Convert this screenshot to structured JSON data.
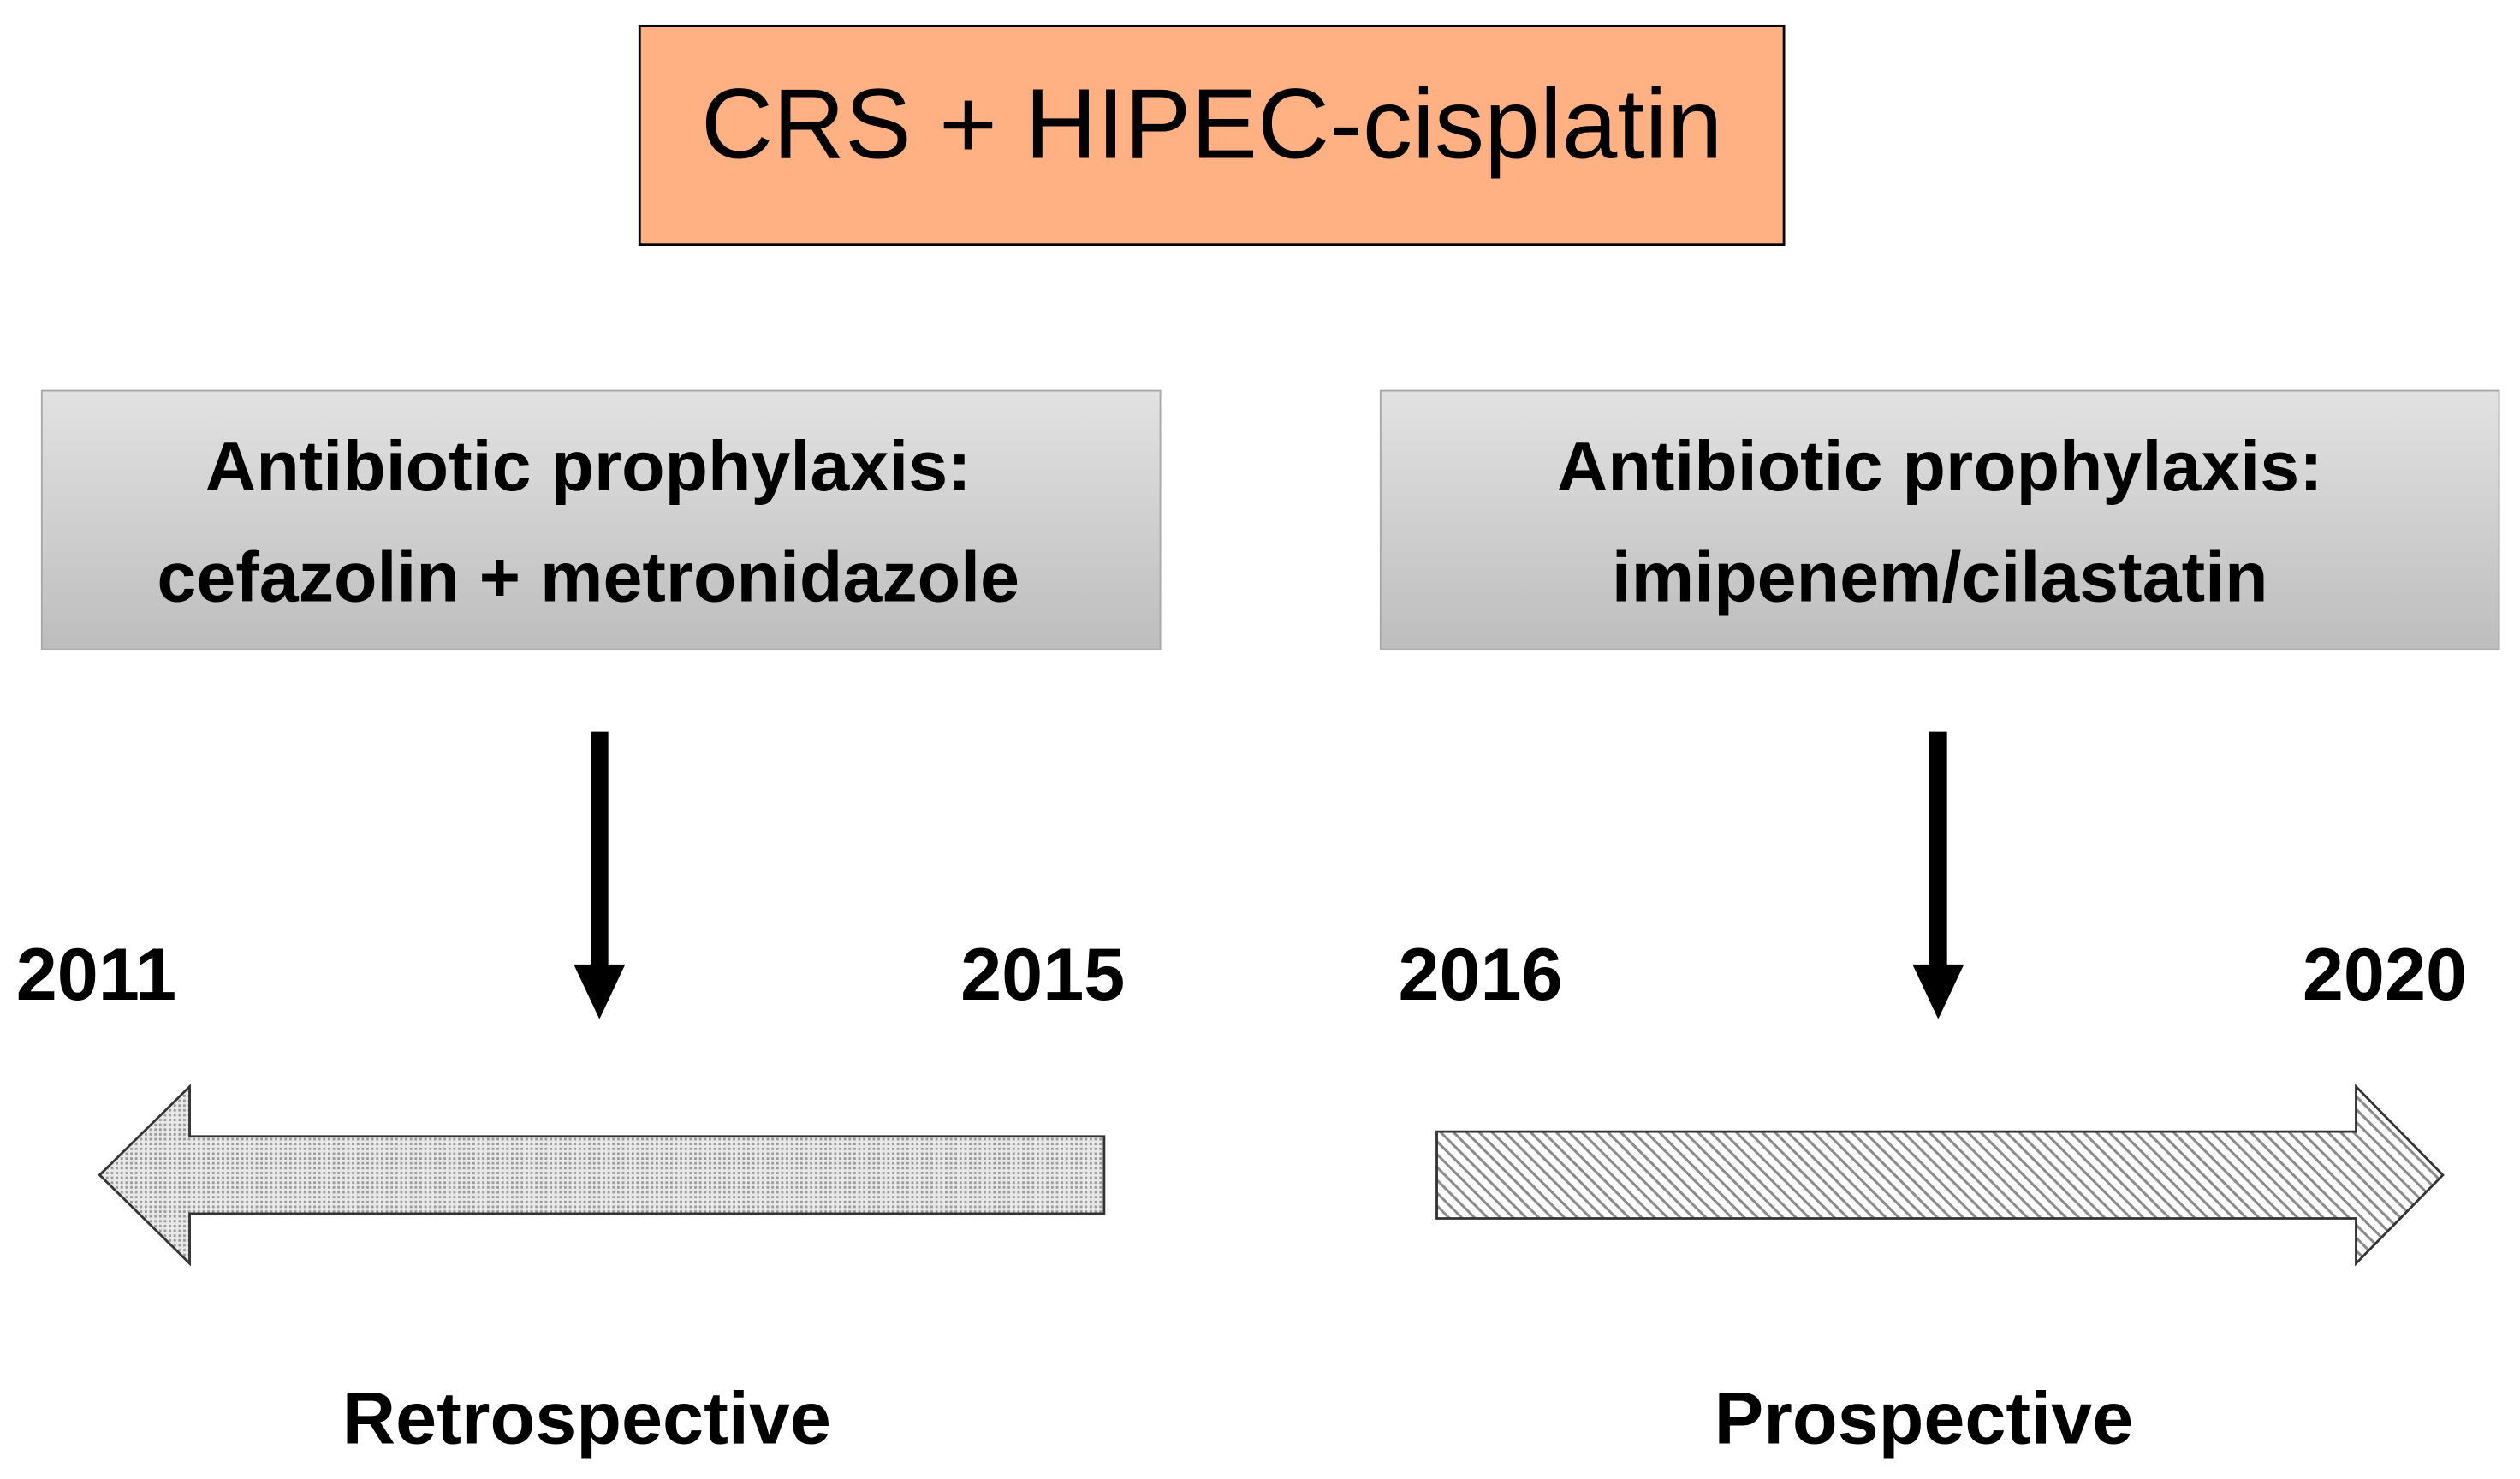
{
  "header": {
    "title": "CRS + HIPEC-cisplatin"
  },
  "periods": [
    {
      "box_lines": [
        "Antibiotic prophylaxis:",
        "cefazolin + metronidazole"
      ],
      "start_year": 2011,
      "end_year": 2015,
      "label": "Retrospective"
    },
    {
      "box_lines": [
        "Antibiotic prophylaxis:",
        "imipenem/cilastatin"
      ],
      "start_year": 2016,
      "end_year": 2020,
      "label": "Prospective"
    }
  ]
}
